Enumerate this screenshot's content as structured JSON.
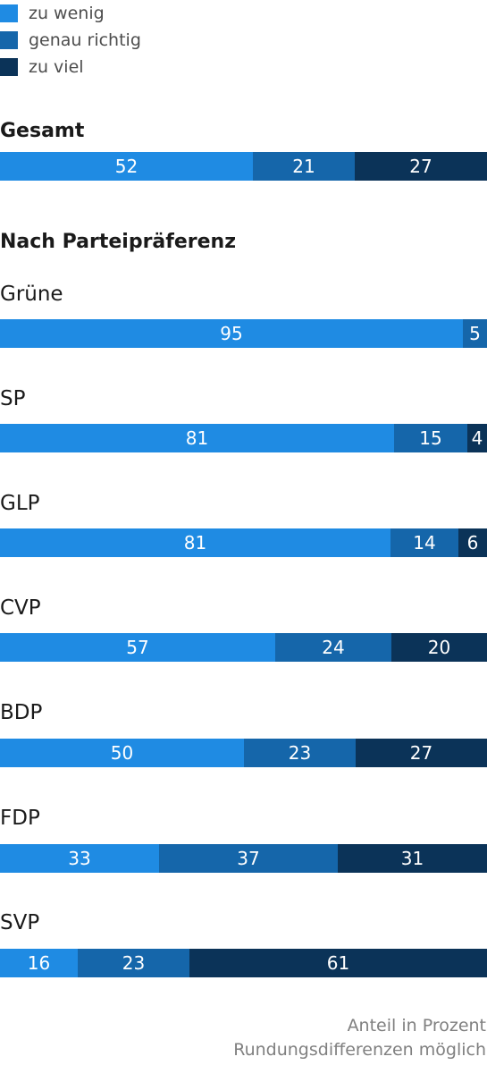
{
  "legend": [
    {
      "label": "zu wenig",
      "color": "#1f8be3"
    },
    {
      "label": "genau richtig",
      "color": "#1566aa"
    },
    {
      "label": "zu viel",
      "color": "#0b3358"
    }
  ],
  "headings": {
    "total": "Gesamt",
    "by_party": "Nach Parteipräferenz"
  },
  "chart_data": {
    "type": "bar",
    "orientation": "horizontal",
    "stacked": true,
    "categories": [
      "Gesamt",
      "Grüne",
      "SP",
      "GLP",
      "CVP",
      "BDP",
      "FDP",
      "SVP"
    ],
    "series": [
      {
        "name": "zu wenig",
        "color": "#1f8be3",
        "values": [
          52,
          95,
          81,
          81,
          57,
          50,
          33,
          16
        ]
      },
      {
        "name": "genau richtig",
        "color": "#1566aa",
        "values": [
          21,
          5,
          15,
          14,
          24,
          23,
          37,
          23
        ]
      },
      {
        "name": "zu viel",
        "color": "#0b3358",
        "values": [
          27,
          0,
          4,
          6,
          20,
          27,
          31,
          61
        ]
      }
    ],
    "xlim": [
      0,
      100
    ],
    "grid": false,
    "legend_position": "top-left"
  },
  "footer": {
    "line1": "Anteil in Prozent",
    "line2": "Rundungsdifferenzen möglich"
  }
}
